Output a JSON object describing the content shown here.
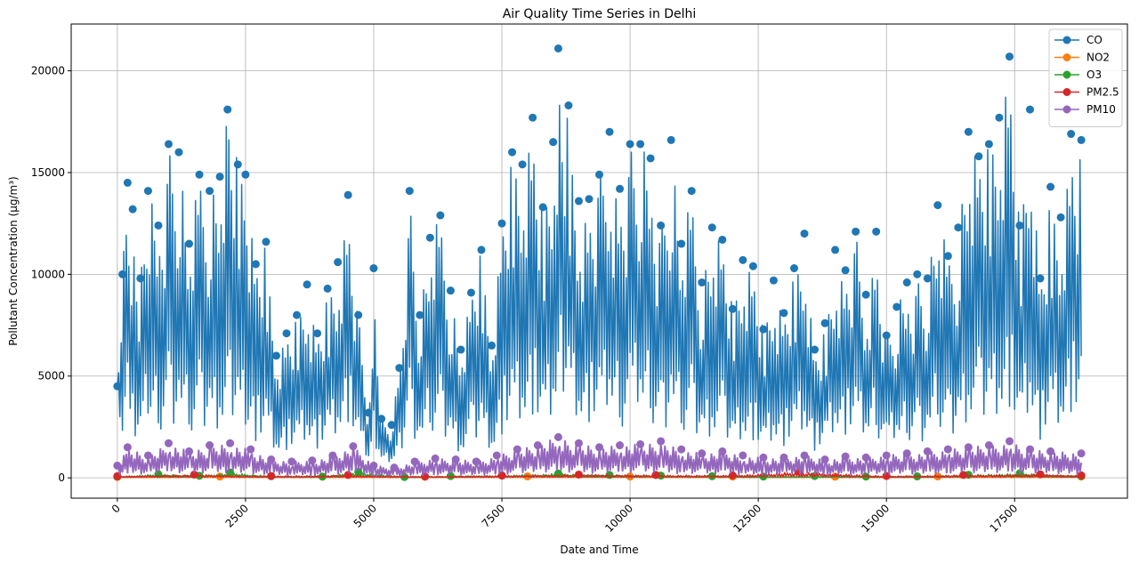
{
  "chart_data": {
    "type": "line",
    "title": "Air Quality Time Series in Delhi",
    "xlabel": "Date and Time",
    "ylabel": "Pollutant Concentration (µg/m³)",
    "xlim": [
      -900,
      19700
    ],
    "ylim": [
      -1000,
      22300
    ],
    "xticks": [
      0,
      2500,
      5000,
      7500,
      10000,
      12500,
      15000,
      17500
    ],
    "xtick_labels": [
      "0",
      "2500",
      "5000",
      "7500",
      "10000",
      "12500",
      "15000",
      "17500"
    ],
    "yticks": [
      0,
      5000,
      10000,
      15000,
      20000
    ],
    "ytick_labels": [
      "0",
      "5000",
      "10000",
      "15000",
      "20000"
    ],
    "grid": true,
    "legend_position": "top-right",
    "markers": true,
    "series": [
      {
        "name": "CO",
        "color": "#1f77b4",
        "x": [
          0,
          100,
          200,
          300,
          450,
          600,
          800,
          1000,
          1200,
          1400,
          1600,
          1800,
          2000,
          2150,
          2350,
          2500,
          2700,
          2900,
          3100,
          3300,
          3500,
          3700,
          3900,
          4100,
          4300,
          4500,
          4700,
          4900,
          5000,
          5150,
          5350,
          5500,
          5700,
          5900,
          6100,
          6300,
          6500,
          6700,
          6900,
          7100,
          7300,
          7500,
          7700,
          7900,
          8100,
          8300,
          8500,
          8600,
          8800,
          9000,
          9200,
          9400,
          9600,
          9800,
          10000,
          10200,
          10400,
          10600,
          10800,
          11000,
          11200,
          11400,
          11600,
          11800,
          12000,
          12200,
          12400,
          12600,
          12800,
          13000,
          13200,
          13400,
          13600,
          13800,
          14000,
          14200,
          14400,
          14600,
          14800,
          15000,
          15200,
          15400,
          15600,
          15800,
          16000,
          16200,
          16400,
          16600,
          16800,
          17000,
          17200,
          17400,
          17600,
          17800,
          18000,
          18200,
          18400,
          18600,
          18800
        ],
        "values": [
          4500,
          10000,
          14500,
          13200,
          9800,
          14100,
          12400,
          16400,
          16000,
          11500,
          14900,
          14100,
          14800,
          18100,
          15400,
          14900,
          10500,
          11600,
          6000,
          7100,
          8000,
          9500,
          7100,
          9300,
          10600,
          13900,
          8000,
          3200,
          10300,
          2900,
          2600,
          5400,
          14100,
          8000,
          11800,
          12900,
          9200,
          6300,
          9100,
          11200,
          6500,
          12500,
          16000,
          15400,
          17700,
          13300,
          16500,
          21100,
          18300,
          13600,
          13700,
          14900,
          17000,
          14200,
          16400,
          16400,
          15700,
          12400,
          16600,
          11500,
          14100,
          9600,
          12300,
          11700,
          8300,
          10700,
          10400,
          7300,
          9700,
          8100,
          10300,
          12000,
          6300,
          7600,
          11200,
          10200,
          12100,
          9000,
          12100,
          7000,
          8400,
          9600,
          10000,
          9800,
          13400,
          10900,
          12300,
          17000,
          15800,
          16400,
          17700,
          20700,
          12400,
          18100,
          9800,
          14300,
          12800,
          16900,
          16600
        ]
      },
      {
        "name": "NO2",
        "color": "#ff7f0e",
        "x": [
          0,
          2000,
          4000,
          6000,
          8000,
          10000,
          12000,
          14000,
          16000,
          18800
        ],
        "values": [
          40,
          60,
          55,
          50,
          70,
          65,
          60,
          55,
          70,
          60
        ]
      },
      {
        "name": "O3",
        "color": "#2ca02c",
        "x": [
          0,
          800,
          1600,
          2200,
          3000,
          4000,
          4700,
          5600,
          6500,
          7500,
          8600,
          9600,
          10600,
          11600,
          12600,
          13600,
          14600,
          15600,
          16600,
          17600,
          18800
        ],
        "values": [
          60,
          180,
          100,
          260,
          80,
          60,
          300,
          40,
          90,
          120,
          210,
          140,
          110,
          80,
          60,
          90,
          60,
          70,
          150,
          220,
          90
        ]
      },
      {
        "name": "PM2.5",
        "color": "#d62728",
        "x": [
          0,
          1500,
          3000,
          4500,
          6000,
          7500,
          9000,
          10500,
          12000,
          13300,
          15000,
          16500,
          18000,
          18800
        ],
        "values": [
          80,
          160,
          90,
          140,
          70,
          110,
          160,
          140,
          120,
          300,
          90,
          140,
          170,
          120
        ]
      },
      {
        "name": "PM10",
        "color": "#9467bd",
        "x": [
          0,
          200,
          600,
          1000,
          1400,
          1800,
          2200,
          2600,
          3000,
          3400,
          3800,
          4200,
          4600,
          5000,
          5400,
          5800,
          6200,
          6600,
          7000,
          7400,
          7800,
          8200,
          8600,
          9000,
          9400,
          9800,
          10200,
          10600,
          11000,
          11400,
          11800,
          12200,
          12600,
          13000,
          13400,
          13800,
          14200,
          14600,
          15000,
          15400,
          15800,
          16200,
          16600,
          17000,
          17400,
          17800,
          18200,
          18800
        ],
        "values": [
          600,
          1500,
          1100,
          1700,
          1300,
          1600,
          1700,
          1400,
          900,
          800,
          850,
          1100,
          1550,
          600,
          500,
          800,
          950,
          900,
          800,
          1100,
          1400,
          1600,
          2000,
          1700,
          1500,
          1600,
          1650,
          1800,
          1400,
          1200,
          1300,
          1100,
          1000,
          1000,
          1100,
          900,
          1050,
          1000,
          1100,
          1200,
          1300,
          1400,
          1500,
          1600,
          1800,
          1400,
          1300,
          1200
        ]
      }
    ]
  }
}
